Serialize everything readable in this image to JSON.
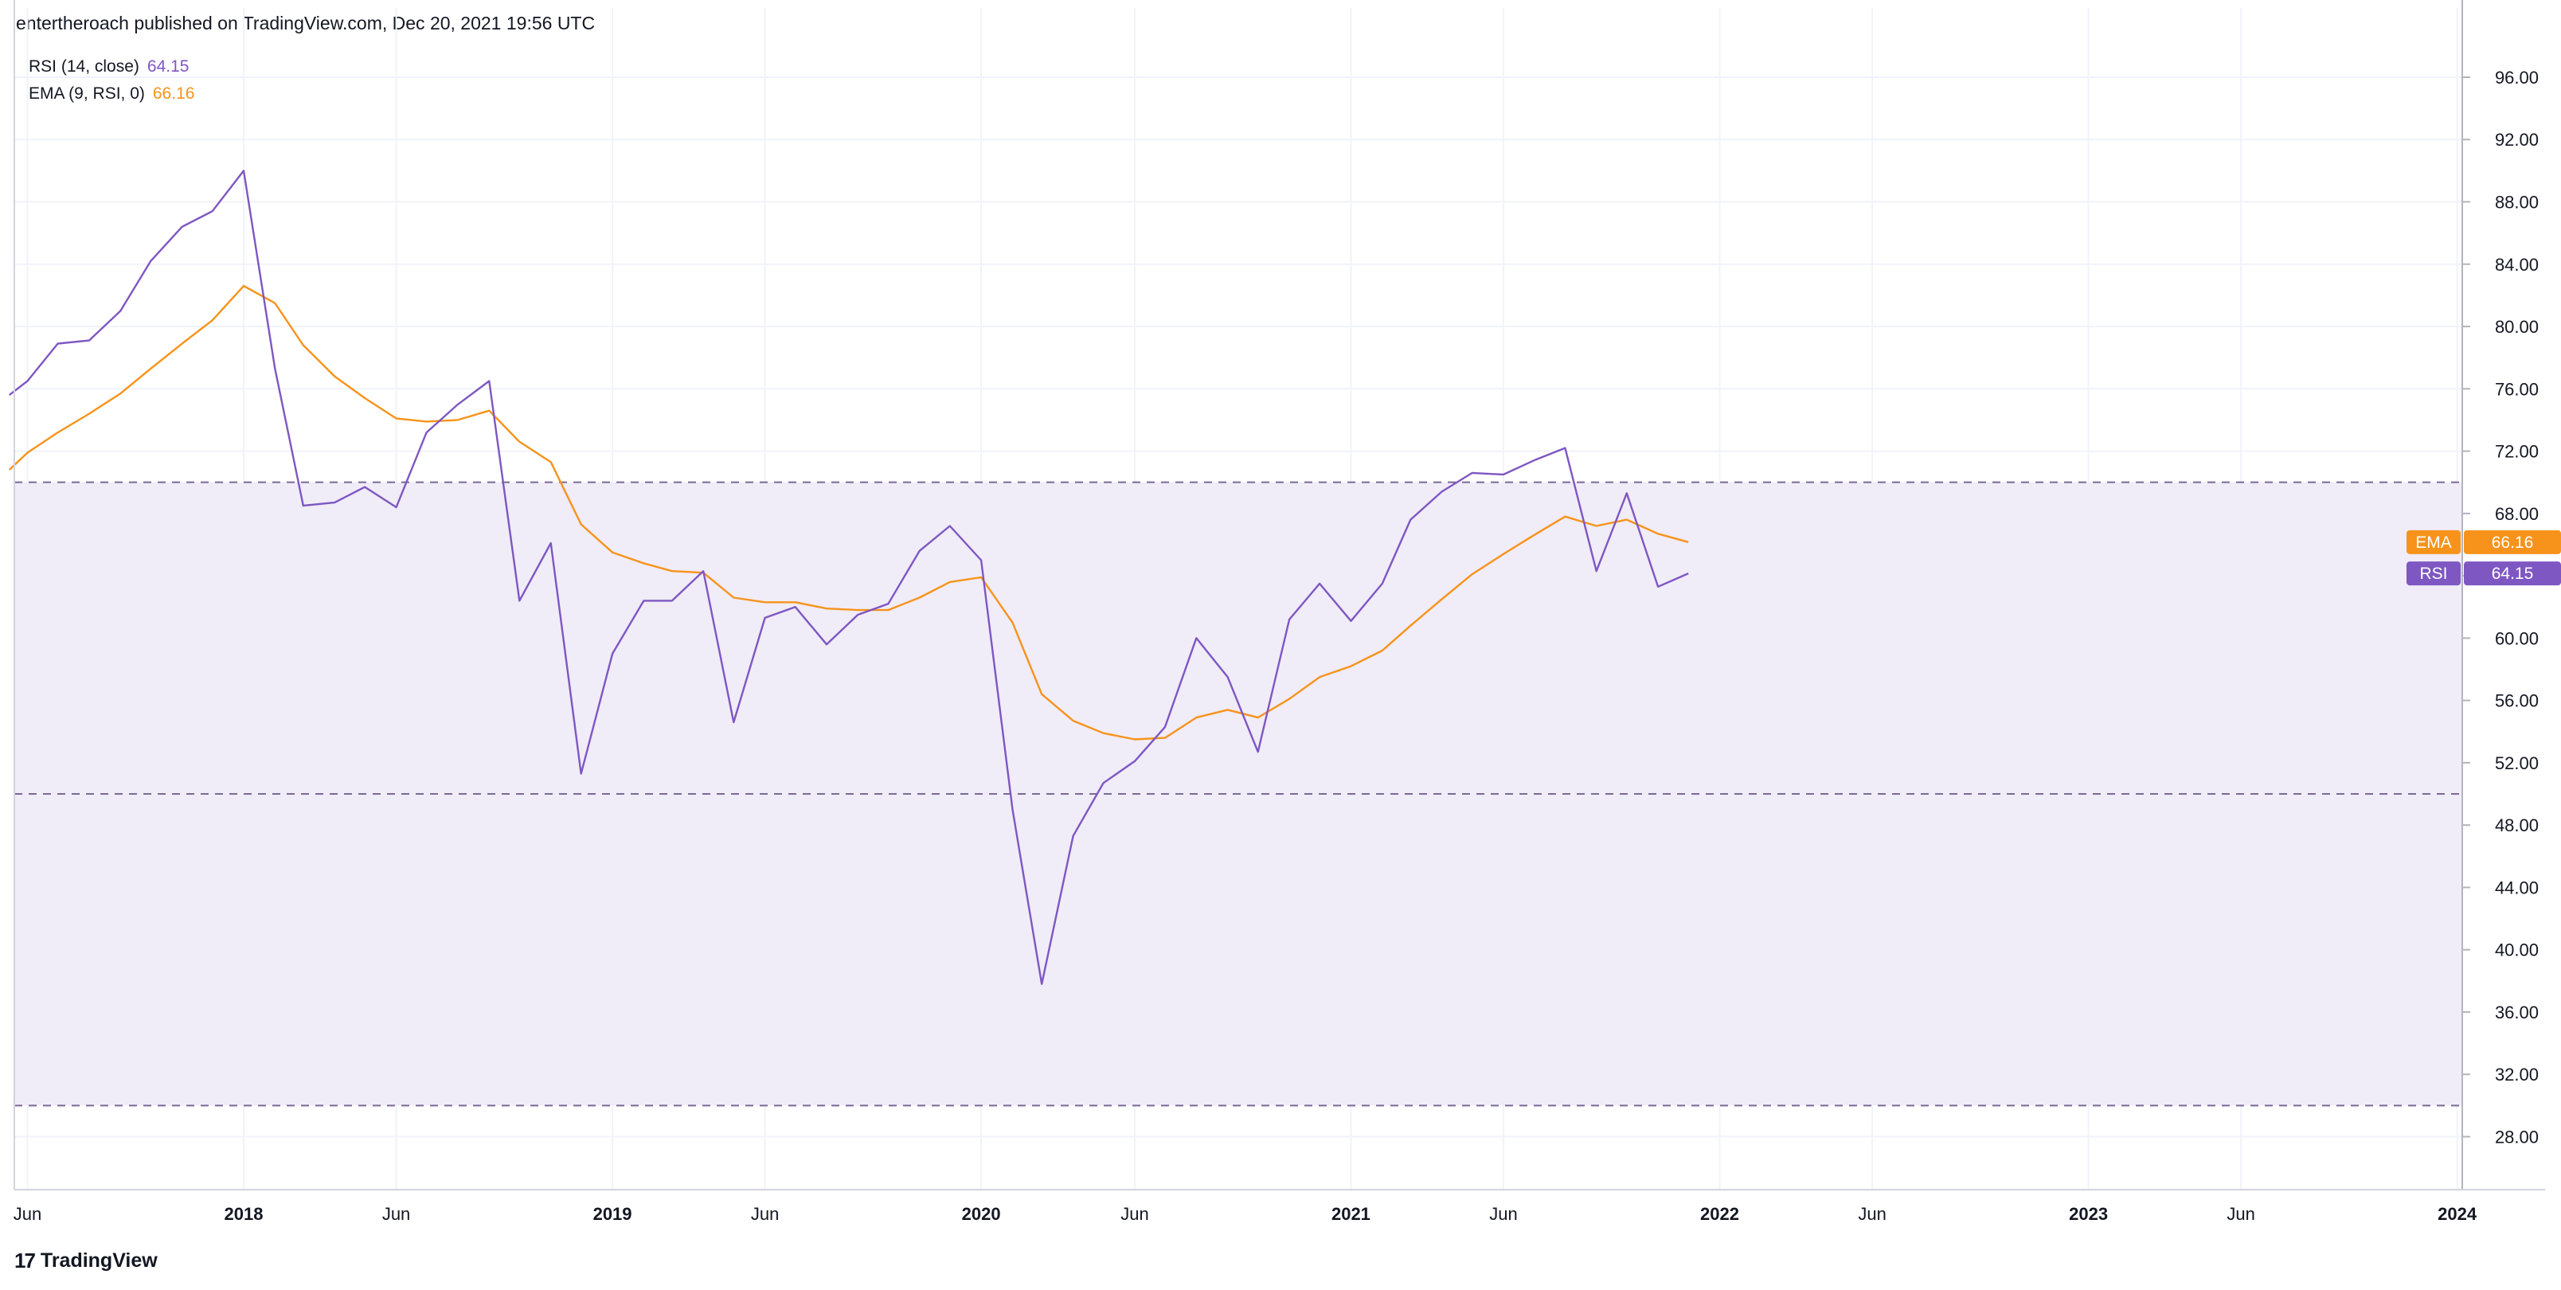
{
  "header": "entertheroach published on TradingView.com, Dec 20, 2021 19:56 UTC",
  "footer": {
    "logo_mark": "17",
    "brand": "TradingView"
  },
  "legend": [
    {
      "label": "RSI (14, close)",
      "value": "64.15",
      "color": "#7e57c2"
    },
    {
      "label": "EMA (9, RSI, 0)",
      "value": "66.16",
      "color": "#f7931a"
    }
  ],
  "badges": [
    {
      "name": "EMA",
      "value": "66.16",
      "color": "#f7931a"
    },
    {
      "name": "RSI",
      "value": "64.15",
      "color": "#7e57c2"
    }
  ],
  "colors": {
    "band_fill": "#f0ecf8",
    "dashed": "#7b6a96",
    "grid": "#f0f3fa"
  },
  "chart_data": {
    "type": "line",
    "y_axis": {
      "side": "right",
      "ylim": [
        24.6,
        98.4
      ],
      "ticks": [
        "96.00",
        "92.00",
        "88.00",
        "84.00",
        "80.00",
        "76.00",
        "72.00",
        "68.00",
        "64.00",
        "60.00",
        "56.00",
        "52.00",
        "48.00",
        "44.00",
        "40.00",
        "36.00",
        "32.00",
        "28.00"
      ]
    },
    "x_axis": {
      "xlim": [
        "2017-05-19",
        "2024-01-06"
      ],
      "ticks": [
        {
          "label": "Jun",
          "date": "2017-06-01",
          "bold": false
        },
        {
          "label": "2018",
          "date": "2018-01-01",
          "bold": true
        },
        {
          "label": "Jun",
          "date": "2018-06-01",
          "bold": false
        },
        {
          "label": "2019",
          "date": "2019-01-01",
          "bold": true
        },
        {
          "label": "Jun",
          "date": "2019-06-01",
          "bold": false
        },
        {
          "label": "2020",
          "date": "2020-01-01",
          "bold": true
        },
        {
          "label": "Jun",
          "date": "2020-06-01",
          "bold": false
        },
        {
          "label": "2021",
          "date": "2021-01-01",
          "bold": true
        },
        {
          "label": "Jun",
          "date": "2021-06-01",
          "bold": false
        },
        {
          "label": "2022",
          "date": "2022-01-01",
          "bold": true
        },
        {
          "label": "Jun",
          "date": "2022-06-01",
          "bold": false
        },
        {
          "label": "2023",
          "date": "2023-01-01",
          "bold": true
        },
        {
          "label": "Jun",
          "date": "2023-06-01",
          "bold": false
        },
        {
          "label": "2024",
          "date": "2024-01-01",
          "bold": true
        }
      ]
    },
    "bands": {
      "upper": 70,
      "middle": 50,
      "lower": 30
    },
    "x": [
      "2017-05-14",
      "2017-06-01",
      "2017-07-01",
      "2017-08-01",
      "2017-09-01",
      "2017-10-01",
      "2017-11-01",
      "2017-12-01",
      "2018-01-01",
      "2018-02-01",
      "2018-03-01",
      "2018-04-01",
      "2018-05-01",
      "2018-06-01",
      "2018-07-01",
      "2018-08-01",
      "2018-09-01",
      "2018-10-01",
      "2018-11-01",
      "2018-12-01",
      "2019-01-01",
      "2019-02-01",
      "2019-03-01",
      "2019-04-01",
      "2019-05-01",
      "2019-06-01",
      "2019-07-01",
      "2019-08-01",
      "2019-09-01",
      "2019-10-01",
      "2019-11-01",
      "2019-12-01",
      "2020-01-01",
      "2020-02-01",
      "2020-03-01",
      "2020-04-01",
      "2020-05-01",
      "2020-06-01",
      "2020-07-01",
      "2020-08-01",
      "2020-09-01",
      "2020-10-01",
      "2020-11-01",
      "2020-12-01",
      "2021-01-01",
      "2021-02-01",
      "2021-03-01",
      "2021-04-01",
      "2021-05-01",
      "2021-06-01",
      "2021-07-01",
      "2021-08-01",
      "2021-09-01",
      "2021-10-01",
      "2021-11-01",
      "2021-12-01"
    ],
    "series": [
      {
        "name": "RSI",
        "color": "#7e57c2",
        "values": [
          75.6,
          76.5,
          78.9,
          79.1,
          81.0,
          84.2,
          86.4,
          87.4,
          90.0,
          77.3,
          68.5,
          68.7,
          69.7,
          68.4,
          73.2,
          75.0,
          76.5,
          62.4,
          66.1,
          51.3,
          59.0,
          62.4,
          62.4,
          64.3,
          54.6,
          61.3,
          62.0,
          59.6,
          61.5,
          62.2,
          65.6,
          67.2,
          65.0,
          49.0,
          37.8,
          47.3,
          50.7,
          52.1,
          54.3,
          60.0,
          57.5,
          52.7,
          61.2,
          63.5,
          61.1,
          63.5,
          67.6,
          69.4,
          70.6,
          70.5,
          71.4,
          72.2,
          64.3,
          69.3,
          63.3,
          64.15
        ]
      },
      {
        "name": "EMA",
        "color": "#f7931a",
        "values": [
          70.8,
          71.9,
          73.2,
          74.4,
          75.7,
          77.3,
          78.9,
          80.4,
          82.6,
          81.5,
          78.8,
          76.8,
          75.4,
          74.1,
          73.9,
          74.0,
          74.6,
          72.6,
          71.3,
          67.3,
          65.5,
          64.8,
          64.3,
          64.2,
          62.6,
          62.3,
          62.3,
          61.9,
          61.8,
          61.8,
          62.6,
          63.6,
          63.9,
          61.0,
          56.4,
          54.7,
          53.9,
          53.5,
          53.6,
          54.9,
          55.4,
          54.9,
          56.1,
          57.5,
          58.2,
          59.2,
          60.8,
          62.5,
          64.1,
          65.4,
          66.6,
          67.8,
          67.2,
          67.6,
          66.7,
          66.16
        ]
      }
    ]
  }
}
